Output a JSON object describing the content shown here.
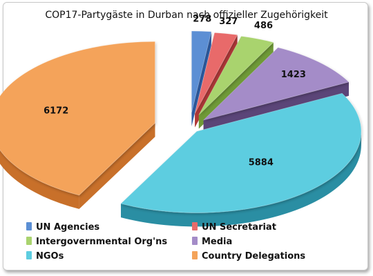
{
  "chart_data": {
    "type": "pie",
    "title": "COP17-Partygäste in Durban nach offizieller Zugehörigkeit",
    "legend_position": "bottom",
    "exploded": true,
    "three_d": true,
    "slices": [
      {
        "label": "UN Agencies",
        "value": 278,
        "color": "#5b8fd4",
        "side": "#2f5fa8"
      },
      {
        "label": "UN Secretariat",
        "value": 327,
        "color": "#e86b6b",
        "side": "#b03838"
      },
      {
        "label": "Intergovernmental Org'ns",
        "value": 486,
        "color": "#a9d36e",
        "side": "#6f9a37"
      },
      {
        "label": "Media",
        "value": 1423,
        "color": "#a48cc8",
        "side": "#5b4578"
      },
      {
        "label": "NGOs",
        "value": 5884,
        "color": "#5dcde0",
        "side": "#2a8ea3"
      },
      {
        "label": "Country Delegations",
        "value": 6172,
        "color": "#f4a35a",
        "side": "#c8702a"
      }
    ]
  }
}
